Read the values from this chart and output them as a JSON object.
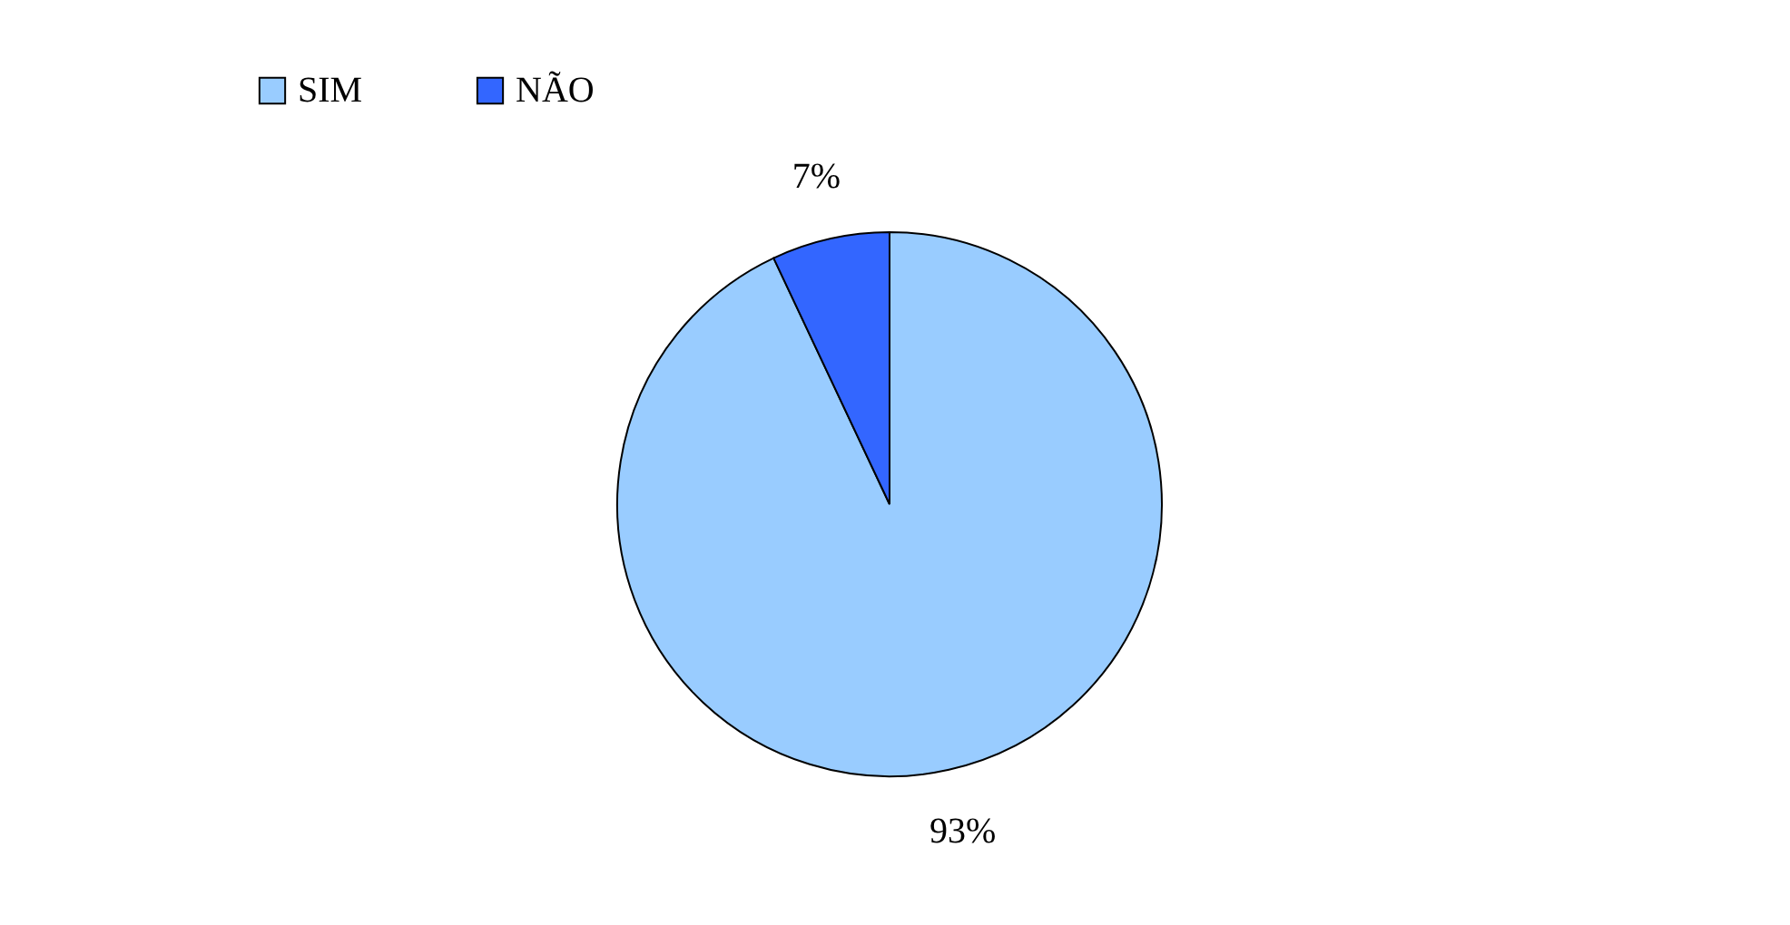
{
  "chart_data": {
    "type": "pie",
    "categories": [
      "SIM",
      "NÃO"
    ],
    "values": [
      93,
      7
    ],
    "colors": [
      "#99ccff",
      "#3366ff"
    ],
    "value_labels": [
      "93%",
      "7%"
    ],
    "legend": "top"
  }
}
